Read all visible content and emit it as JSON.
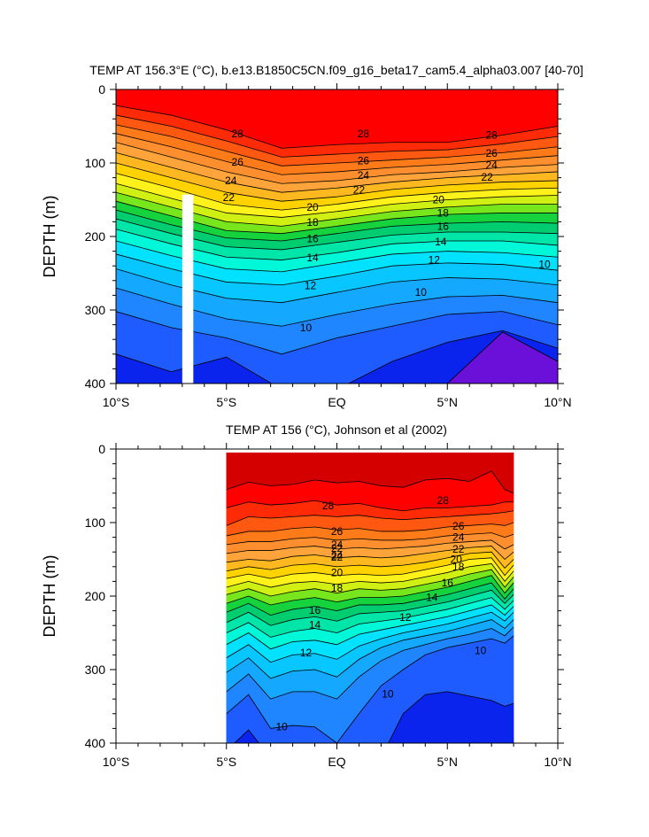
{
  "chart_data": [
    {
      "type": "contour",
      "title": "TEMP AT 156.3°E (°C), b.e13.B1850C5CN.f09_g16_beta17_cam5.4_alpha03.007 [40-70]",
      "ylabel": "DEPTH (m)",
      "xlabel": "",
      "xlim": [
        -10,
        10
      ],
      "ylim": [
        400,
        0
      ],
      "x_ticks": [
        -10,
        -5,
        0,
        5,
        10
      ],
      "x_tick_labels": [
        "10°S",
        "5°S",
        "EQ",
        "5°N",
        "10°N"
      ],
      "y_ticks": [
        0,
        100,
        200,
        300,
        400
      ],
      "y_tick_labels": [
        "0",
        "100",
        "200",
        "300",
        "400"
      ],
      "contour_levels": [
        8,
        9,
        10,
        11,
        12,
        13,
        14,
        15,
        16,
        17,
        18,
        19,
        20,
        21,
        22,
        23,
        24,
        25,
        26,
        27,
        28
      ],
      "isotherm_depths_x": [
        -10,
        -7.5,
        -5,
        -2.5,
        0,
        2.5,
        5,
        7.5,
        10
      ],
      "isotherms": [
        {
          "temp": 28,
          "depths": [
            22,
            35,
            55,
            80,
            75,
            72,
            72,
            62,
            50
          ]
        },
        {
          "temp": 27,
          "depths": [
            35,
            50,
            70,
            92,
            88,
            84,
            82,
            74,
            64
          ]
        },
        {
          "temp": 26,
          "depths": [
            48,
            64,
            84,
            104,
            100,
            96,
            92,
            86,
            78
          ]
        },
        {
          "temp": 25,
          "depths": [
            60,
            78,
            98,
            116,
            112,
            106,
            102,
            96,
            90
          ]
        },
        {
          "temp": 24,
          "depths": [
            72,
            92,
            112,
            128,
            124,
            116,
            112,
            106,
            102
          ]
        },
        {
          "temp": 23,
          "depths": [
            86,
            106,
            126,
            140,
            134,
            126,
            120,
            116,
            112
          ]
        },
        {
          "temp": 22,
          "depths": [
            100,
            120,
            140,
            152,
            146,
            136,
            130,
            126,
            124
          ]
        },
        {
          "temp": 21,
          "depths": [
            114,
            134,
            156,
            164,
            156,
            146,
            140,
            136,
            134
          ]
        },
        {
          "temp": 20,
          "depths": [
            128,
            148,
            168,
            174,
            166,
            156,
            150,
            146,
            144
          ]
        },
        {
          "temp": 19,
          "depths": [
            140,
            160,
            180,
            186,
            176,
            166,
            160,
            156,
            156
          ]
        },
        {
          "temp": 18,
          "depths": [
            152,
            172,
            192,
            196,
            186,
            176,
            170,
            168,
            168
          ]
        },
        {
          "temp": 17,
          "depths": [
            164,
            184,
            202,
            206,
            196,
            186,
            182,
            180,
            182
          ]
        },
        {
          "temp": 16,
          "depths": [
            176,
            196,
            214,
            218,
            208,
            198,
            194,
            194,
            196
          ]
        },
        {
          "temp": 15,
          "depths": [
            190,
            210,
            228,
            232,
            222,
            210,
            206,
            206,
            212
          ]
        },
        {
          "temp": 14,
          "depths": [
            206,
            226,
            244,
            248,
            236,
            224,
            220,
            222,
            228
          ]
        },
        {
          "temp": 13,
          "depths": [
            224,
            244,
            262,
            266,
            254,
            240,
            236,
            238,
            246
          ]
        },
        {
          "temp": 12,
          "depths": [
            244,
            266,
            284,
            290,
            276,
            262,
            256,
            258,
            266
          ]
        },
        {
          "temp": 11,
          "depths": [
            270,
            292,
            312,
            322,
            306,
            292,
            282,
            280,
            290
          ]
        },
        {
          "temp": 10,
          "depths": [
            302,
            324,
            338,
            360,
            338,
            322,
            306,
            302,
            320
          ]
        },
        {
          "temp": 9,
          "depths": [
            360,
            384,
            364,
            408,
            408,
            370,
            344,
            328,
            352
          ]
        },
        {
          "temp": 8,
          "depths": [
            420,
            440,
            440,
            450,
            450,
            440,
            400,
            330,
            370
          ]
        }
      ],
      "contour_labels": [
        {
          "text": "28",
          "x": -4.5,
          "depth": 60
        },
        {
          "text": "28",
          "x": 1.2,
          "depth": 60
        },
        {
          "text": "28",
          "x": 7,
          "depth": 62
        },
        {
          "text": "26",
          "x": -4.5,
          "depth": 99
        },
        {
          "text": "26",
          "x": 1.2,
          "depth": 97
        },
        {
          "text": "26",
          "x": 7,
          "depth": 87
        },
        {
          "text": "24",
          "x": -4.8,
          "depth": 124
        },
        {
          "text": "24",
          "x": 1.2,
          "depth": 117
        },
        {
          "text": "24",
          "x": 7,
          "depth": 103
        },
        {
          "text": "22",
          "x": -4.9,
          "depth": 147
        },
        {
          "text": "22",
          "x": 1.0,
          "depth": 137
        },
        {
          "text": "22",
          "x": 6.8,
          "depth": 119
        },
        {
          "text": "20",
          "x": -1.1,
          "depth": 160
        },
        {
          "text": "20",
          "x": 4.6,
          "depth": 150
        },
        {
          "text": "18",
          "x": -1.1,
          "depth": 181
        },
        {
          "text": "18",
          "x": 4.8,
          "depth": 168
        },
        {
          "text": "16",
          "x": -1.1,
          "depth": 203
        },
        {
          "text": "16",
          "x": 4.8,
          "depth": 186
        },
        {
          "text": "14",
          "x": -1.1,
          "depth": 229
        },
        {
          "text": "14",
          "x": 4.7,
          "depth": 207
        },
        {
          "text": "12",
          "x": -1.2,
          "depth": 267
        },
        {
          "text": "12",
          "x": 4.4,
          "depth": 232
        },
        {
          "text": "10",
          "x": -1.4,
          "depth": 324
        },
        {
          "text": "10",
          "x": 3.8,
          "depth": 276
        },
        {
          "text": "10",
          "x": 9.4,
          "depth": 238
        }
      ],
      "masked_columns": [
        {
          "x_from": -7.0,
          "x_to": -6.5,
          "depth_from": 143,
          "depth_to": 400
        }
      ]
    },
    {
      "type": "contour",
      "title": "TEMP AT 156 (°C), Johnson et al (2002)",
      "ylabel": "DEPTH (m)",
      "xlabel": "",
      "xlim": [
        -10,
        10
      ],
      "ylim": [
        400,
        0
      ],
      "x_ticks": [
        -10,
        -5,
        0,
        5,
        10
      ],
      "x_tick_labels": [
        "10°S",
        "5°S",
        "EQ",
        "5°N",
        "10°N"
      ],
      "y_ticks": [
        0,
        100,
        200,
        300,
        400
      ],
      "y_tick_labels": [
        "0",
        "100",
        "200",
        "300",
        "400"
      ],
      "data_extent_x": [
        -5,
        8
      ],
      "data_extent_depth": [
        5,
        400
      ],
      "contour_levels": [
        9,
        10,
        11,
        12,
        13,
        14,
        15,
        16,
        17,
        18,
        19,
        20,
        21,
        22,
        23,
        24,
        25,
        26,
        27,
        28,
        29
      ],
      "isotherm_depths_x": [
        -5,
        -4,
        -3,
        -2,
        -1,
        0,
        1,
        2,
        3,
        4,
        5,
        6,
        7,
        7.6,
        8
      ],
      "isotherms": [
        {
          "temp": 29,
          "depths": [
            55,
            45,
            50,
            48,
            42,
            46,
            44,
            50,
            52,
            42,
            40,
            44,
            30,
            55,
            60
          ]
        },
        {
          "temp": 28,
          "depths": [
            80,
            72,
            76,
            74,
            70,
            76,
            74,
            80,
            84,
            80,
            80,
            78,
            76,
            72,
            72
          ]
        },
        {
          "temp": 27,
          "depths": [
            104,
            92,
            94,
            92,
            90,
            92,
            90,
            94,
            96,
            94,
            92,
            90,
            88,
            86,
            84
          ]
        },
        {
          "temp": 26,
          "depths": [
            118,
            112,
            112,
            108,
            106,
            110,
            108,
            112,
            112,
            110,
            106,
            104,
            102,
            104,
            100
          ]
        },
        {
          "temp": 25,
          "depths": [
            130,
            126,
            126,
            122,
            120,
            124,
            122,
            124,
            124,
            122,
            118,
            116,
            114,
            120,
            116
          ]
        },
        {
          "temp": 24,
          "depths": [
            142,
            138,
            138,
            134,
            132,
            136,
            134,
            136,
            134,
            132,
            128,
            126,
            124,
            136,
            130
          ]
        },
        {
          "temp": 23,
          "depths": [
            154,
            150,
            152,
            146,
            144,
            148,
            146,
            148,
            146,
            142,
            138,
            134,
            132,
            150,
            140
          ]
        },
        {
          "temp": 22,
          "depths": [
            166,
            160,
            164,
            158,
            156,
            160,
            158,
            160,
            158,
            154,
            148,
            142,
            140,
            162,
            150
          ]
        },
        {
          "temp": 21,
          "depths": [
            176,
            170,
            176,
            170,
            168,
            172,
            170,
            172,
            170,
            164,
            158,
            150,
            148,
            172,
            158
          ]
        },
        {
          "temp": 20,
          "depths": [
            188,
            180,
            188,
            182,
            180,
            184,
            180,
            182,
            180,
            174,
            168,
            160,
            156,
            180,
            166
          ]
        },
        {
          "temp": 19,
          "depths": [
            198,
            190,
            200,
            194,
            190,
            196,
            190,
            192,
            190,
            184,
            178,
            170,
            164,
            188,
            174
          ]
        },
        {
          "temp": 18,
          "depths": [
            210,
            200,
            212,
            206,
            202,
            208,
            202,
            202,
            200,
            194,
            188,
            180,
            172,
            196,
            182
          ]
        },
        {
          "temp": 17,
          "depths": [
            222,
            210,
            226,
            218,
            214,
            220,
            212,
            212,
            210,
            204,
            198,
            190,
            182,
            204,
            190
          ]
        },
        {
          "temp": 16,
          "depths": [
            236,
            222,
            240,
            232,
            228,
            234,
            224,
            222,
            220,
            214,
            208,
            200,
            192,
            210,
            198
          ]
        },
        {
          "temp": 15,
          "depths": [
            250,
            236,
            256,
            248,
            244,
            250,
            238,
            234,
            230,
            224,
            218,
            210,
            202,
            218,
            206
          ]
        },
        {
          "temp": 14,
          "depths": [
            266,
            250,
            272,
            262,
            260,
            266,
            252,
            246,
            240,
            234,
            228,
            220,
            212,
            226,
            214
          ]
        },
        {
          "temp": 13,
          "depths": [
            284,
            266,
            290,
            280,
            278,
            286,
            268,
            258,
            250,
            244,
            238,
            230,
            222,
            234,
            222
          ]
        },
        {
          "temp": 12,
          "depths": [
            304,
            284,
            312,
            302,
            300,
            310,
            286,
            270,
            260,
            254,
            248,
            240,
            232,
            244,
            232
          ]
        },
        {
          "temp": 11,
          "depths": [
            330,
            306,
            340,
            330,
            330,
            340,
            310,
            288,
            274,
            266,
            258,
            252,
            244,
            254,
            242
          ]
        },
        {
          "temp": 10,
          "depths": [
            360,
            334,
            380,
            376,
            378,
            400,
            360,
            322,
            300,
            280,
            270,
            264,
            258,
            264,
            254
          ]
        },
        {
          "temp": 9,
          "depths": [
            410,
            382,
            420,
            420,
            420,
            420,
            420,
            420,
            360,
            334,
            330,
            336,
            342,
            350,
            346
          ]
        }
      ],
      "contour_labels": [
        {
          "text": "28",
          "x": -0.4,
          "depth": 77
        },
        {
          "text": "28",
          "x": 4.8,
          "depth": 70
        },
        {
          "text": "26",
          "x": 0,
          "depth": 112
        },
        {
          "text": "26",
          "x": 5.5,
          "depth": 105
        },
        {
          "text": "24",
          "x": 0,
          "depth": 130
        },
        {
          "text": "24",
          "x": 5.5,
          "depth": 120
        },
        {
          "text": "24",
          "x": 0,
          "depth": 145
        },
        {
          "text": "22",
          "x": 0,
          "depth": 135
        },
        {
          "text": "22",
          "x": 5.5,
          "depth": 136
        },
        {
          "text": "22",
          "x": 0,
          "depth": 147
        },
        {
          "text": "20",
          "x": 0,
          "depth": 168
        },
        {
          "text": "20",
          "x": 5.4,
          "depth": 150
        },
        {
          "text": "18",
          "x": 0,
          "depth": 189
        },
        {
          "text": "18",
          "x": 5.5,
          "depth": 160
        },
        {
          "text": "16",
          "x": -1,
          "depth": 219
        },
        {
          "text": "16",
          "x": 5,
          "depth": 182
        },
        {
          "text": "14",
          "x": -1,
          "depth": 239
        },
        {
          "text": "14",
          "x": 4.3,
          "depth": 202
        },
        {
          "text": "12",
          "x": -1.4,
          "depth": 277
        },
        {
          "text": "12",
          "x": 3.1,
          "depth": 229
        },
        {
          "text": "10",
          "x": 2.3,
          "depth": 333
        },
        {
          "text": "10",
          "x": 6.5,
          "depth": 274
        },
        {
          "text": "10",
          "x": -2.5,
          "depth": 378
        }
      ]
    }
  ],
  "palette": {
    "8": "#6a10d8",
    "9": "#0a24ee",
    "10": "#1e5cff",
    "11": "#1f86ff",
    "12": "#14a8ff",
    "13": "#08c6ff",
    "14": "#00e2ff",
    "15": "#00f8d8",
    "16": "#00e6a8",
    "17": "#00cc70",
    "18": "#16d23c",
    "19": "#78e61c",
    "20": "#d0f014",
    "21": "#fff21a",
    "22": "#ffd200",
    "23": "#ffb820",
    "24": "#ffa43a",
    "25": "#ff8f2e",
    "26": "#ff7a18",
    "27": "#ff5810",
    "28": "#ff2a06",
    "29": "#ff0000",
    "30": "#d40000"
  }
}
